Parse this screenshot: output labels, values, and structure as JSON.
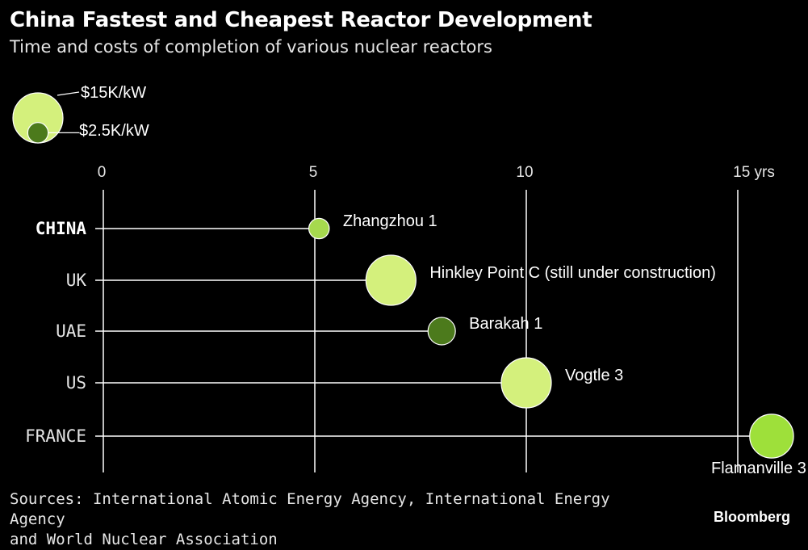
{
  "title": "China Fastest and Cheapest Reactor Development",
  "subtitle": "Time and costs of completion of various nuclear reactors",
  "sources_line1": "Sources: International Atomic Energy Agency, International Energy Agency",
  "sources_line2": "and World Nuclear Association",
  "brand": "Bloomberg",
  "legend": {
    "large_label": "$15K/kW",
    "large_value": 15,
    "small_label": "$2.5K/kW",
    "small_value": 2.5
  },
  "colors": {
    "background": "#000000",
    "grid": "#ffffff",
    "light_green": "#d4f07c",
    "olive_green": "#4c7a1c",
    "bright_green": "#9ee03a"
  },
  "chart_data": {
    "type": "scatter",
    "subtype": "bubble",
    "x_ticks": [
      0,
      5,
      10,
      15
    ],
    "x_tick_labels": [
      "0",
      "5",
      "10",
      "15 yrs"
    ],
    "xlim": [
      0,
      15
    ],
    "categories": [
      "CHINA",
      "UK",
      "UAE",
      "US",
      "FRANCE"
    ],
    "series": [
      {
        "country": "CHINA",
        "reactor": "Zhangzhou 1",
        "years": 5.1,
        "cost_k_per_kw": 2.5,
        "color": "#a6d94e",
        "label_position": "right"
      },
      {
        "country": "UK",
        "reactor": "Hinkley Point C (still under construction)",
        "years": 6.8,
        "cost_k_per_kw": 15,
        "color": "#d4f07c",
        "label_position": "right"
      },
      {
        "country": "UAE",
        "reactor": "Barakah 1",
        "years": 8.0,
        "cost_k_per_kw": 4.5,
        "color": "#4c7a1c",
        "label_position": "right"
      },
      {
        "country": "US",
        "reactor": "Vogtle 3",
        "years": 10.0,
        "cost_k_per_kw": 15,
        "color": "#d4f07c",
        "label_position": "right"
      },
      {
        "country": "FRANCE",
        "reactor": "Flamanville 3",
        "years": 15.8,
        "cost_k_per_kw": 11.5,
        "color": "#9ee03a",
        "label_position": "below"
      }
    ]
  }
}
